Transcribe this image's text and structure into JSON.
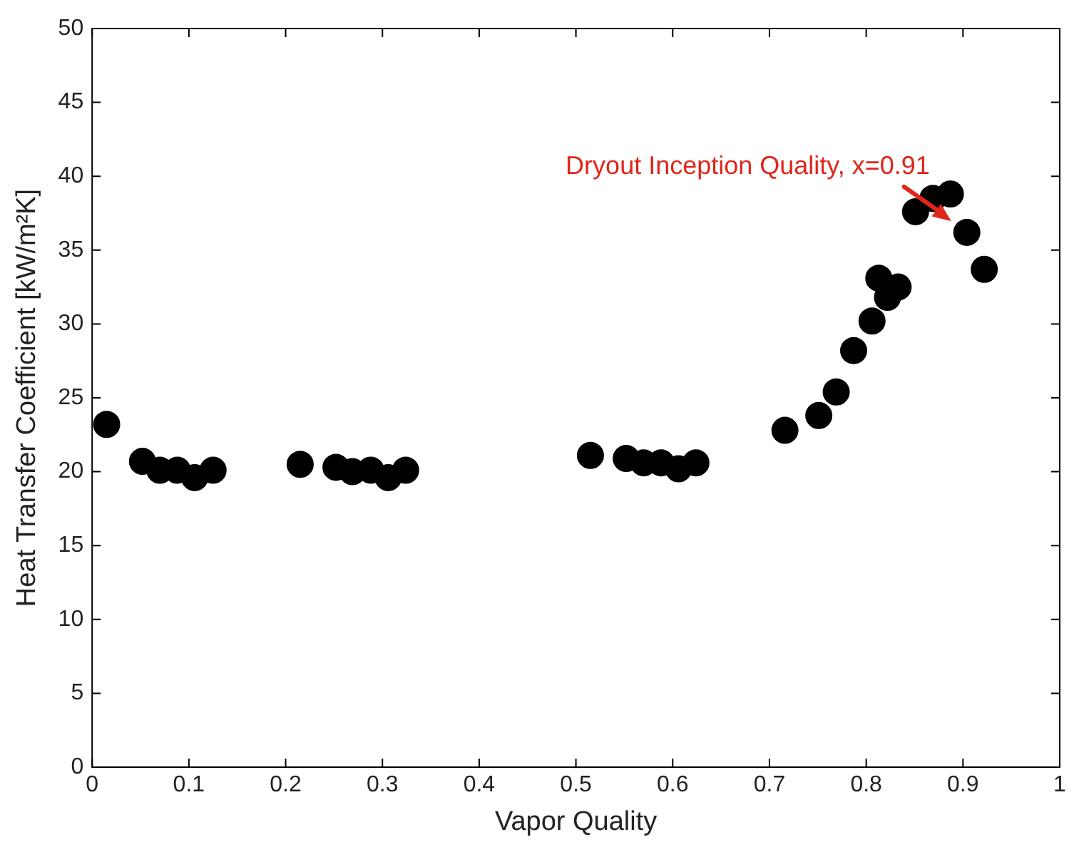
{
  "chart_data": {
    "type": "scatter",
    "xlabel": "Vapor Quality",
    "ylabel": "Heat Transfer Coefficient [kW/m²K]",
    "x": [
      0.015,
      0.052,
      0.07,
      0.088,
      0.106,
      0.125,
      0.215,
      0.252,
      0.269,
      0.288,
      0.306,
      0.324,
      0.515,
      0.552,
      0.57,
      0.588,
      0.606,
      0.624,
      0.716,
      0.751,
      0.769,
      0.787,
      0.806,
      0.813,
      0.822,
      0.833,
      0.851,
      0.869,
      0.887,
      0.904,
      0.922
    ],
    "series": [
      {
        "color": "#000000",
        "values": [
          23.2,
          20.7,
          20.1,
          20.1,
          19.6,
          20.1,
          20.5,
          20.3,
          20.0,
          20.1,
          19.6,
          20.1,
          21.1,
          20.9,
          20.6,
          20.6,
          20.2,
          20.6,
          22.8,
          23.8,
          25.4,
          28.2,
          30.2,
          33.1,
          31.8,
          32.5,
          37.6,
          38.5,
          38.8,
          36.2,
          33.7
        ]
      }
    ],
    "xlim": [
      0,
      1
    ],
    "xticks": [
      0,
      0.1,
      0.2,
      0.3,
      0.4,
      0.5,
      0.6,
      0.7,
      0.8,
      0.9,
      1
    ],
    "ylim": [
      0,
      50
    ],
    "yticks": [
      0,
      5,
      10,
      15,
      20,
      25,
      30,
      35,
      40,
      45,
      50
    ],
    "grid": false,
    "legend": false,
    "marker": "circle",
    "annotations": [
      {
        "text": "Dryout Inception Quality, x=0.91",
        "x": 0.904,
        "y": 36.2
      }
    ]
  }
}
